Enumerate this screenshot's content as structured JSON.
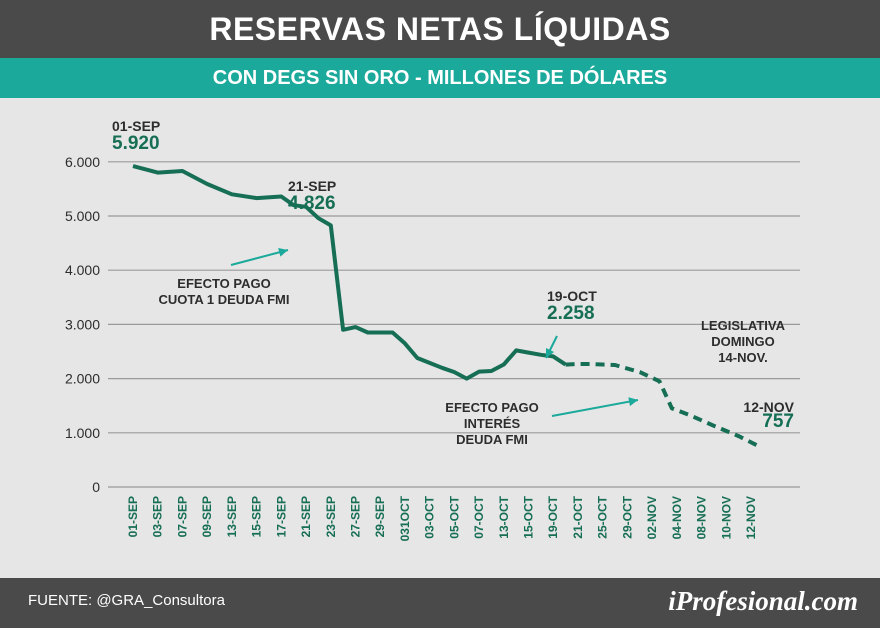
{
  "header": {
    "title": "RESERVAS NETAS LÍQUIDAS",
    "subtitle": "CON DEGS SIN ORO - MILLONES DE DÓLARES"
  },
  "footer": {
    "source": "FUENTE: @GRA_Consultora",
    "brand": "iProfesional.com"
  },
  "colors": {
    "line": "#166e55",
    "accent": "#1aa99a",
    "label_green": "#166e55",
    "dark": "#2d2d2d",
    "grid": "#9a9a9a"
  },
  "chart_data": {
    "type": "line",
    "title": "RESERVAS NETAS LÍQUIDAS",
    "subtitle": "CON DEGS SIN ORO - MILLONES DE DÓLARES",
    "ylim": [
      0,
      6000
    ],
    "yticks": [
      0,
      1000,
      2000,
      3000,
      4000,
      5000,
      6000
    ],
    "ytick_labels": [
      "0",
      "1.000",
      "2.000",
      "3.000",
      "4.000",
      "5.000",
      "6.000"
    ],
    "xtick_labels": [
      "01-SEP",
      "03-SEP",
      "07-SEP",
      "09-SEP",
      "13-SEP",
      "15-SEP",
      "17-SEP",
      "21-SEP",
      "23-SEP",
      "27-SEP",
      "29-SEP",
      "031OCT",
      "03-OCT",
      "05-OCT",
      "07-OCT",
      "13-OCT",
      "15-OCT",
      "19-OCT",
      "21-OCT",
      "25-OCT",
      "29-OCT",
      "02-NOV",
      "04-NOV",
      "08-NOV",
      "10-NOV",
      "12-NOV"
    ],
    "grid": true,
    "series": [
      {
        "style": "solid",
        "points": [
          [
            0,
            5920
          ],
          [
            1,
            5800
          ],
          [
            2,
            5830
          ],
          [
            3,
            5590
          ],
          [
            4,
            5400
          ],
          [
            5,
            5330
          ],
          [
            6,
            5360
          ],
          [
            6.5,
            5200
          ],
          [
            7,
            5170
          ],
          [
            7.5,
            4960
          ],
          [
            8,
            4826
          ],
          [
            8.5,
            2900
          ],
          [
            9,
            2950
          ],
          [
            9.5,
            2850
          ],
          [
            10,
            2850
          ],
          [
            10.5,
            2850
          ],
          [
            11,
            2650
          ],
          [
            11.5,
            2380
          ],
          [
            12,
            2290
          ],
          [
            12.5,
            2200
          ],
          [
            13,
            2120
          ],
          [
            13.5,
            2000
          ],
          [
            14,
            2130
          ],
          [
            14.5,
            2140
          ],
          [
            15,
            2260
          ],
          [
            15.5,
            2520
          ],
          [
            16,
            2480
          ],
          [
            16.5,
            2440
          ],
          [
            17,
            2410
          ],
          [
            17.5,
            2258
          ]
        ]
      },
      {
        "style": "dashed",
        "points": [
          [
            17.5,
            2258
          ],
          [
            18,
            2270
          ],
          [
            18.5,
            2270
          ],
          [
            19,
            2260
          ],
          [
            19.5,
            2250
          ],
          [
            20.5,
            2120
          ],
          [
            21.3,
            1950
          ],
          [
            21.8,
            1450
          ],
          [
            22.5,
            1330
          ],
          [
            23.5,
            1130
          ],
          [
            24.5,
            940
          ],
          [
            25.3,
            757
          ]
        ]
      }
    ],
    "annotations": [
      {
        "id": "start",
        "date": "01-SEP",
        "value": "5.920"
      },
      {
        "id": "sep21",
        "date": "21-SEP",
        "value": "4.826"
      },
      {
        "id": "oct19",
        "date": "19-OCT",
        "value": "2.258"
      },
      {
        "id": "nov12",
        "date": "12-NOV",
        "value": "757"
      },
      {
        "id": "efecto1",
        "lines": [
          "EFECTO PAGO",
          "CUOTA 1 DEUDA FMI"
        ]
      },
      {
        "id": "efecto2",
        "lines": [
          "EFECTO PAGO",
          "INTERÉS",
          "DEUDA FMI"
        ]
      },
      {
        "id": "legislativa",
        "lines": [
          "LEGISLATIVA",
          "DOMINGO",
          "14-NOV."
        ]
      }
    ]
  }
}
